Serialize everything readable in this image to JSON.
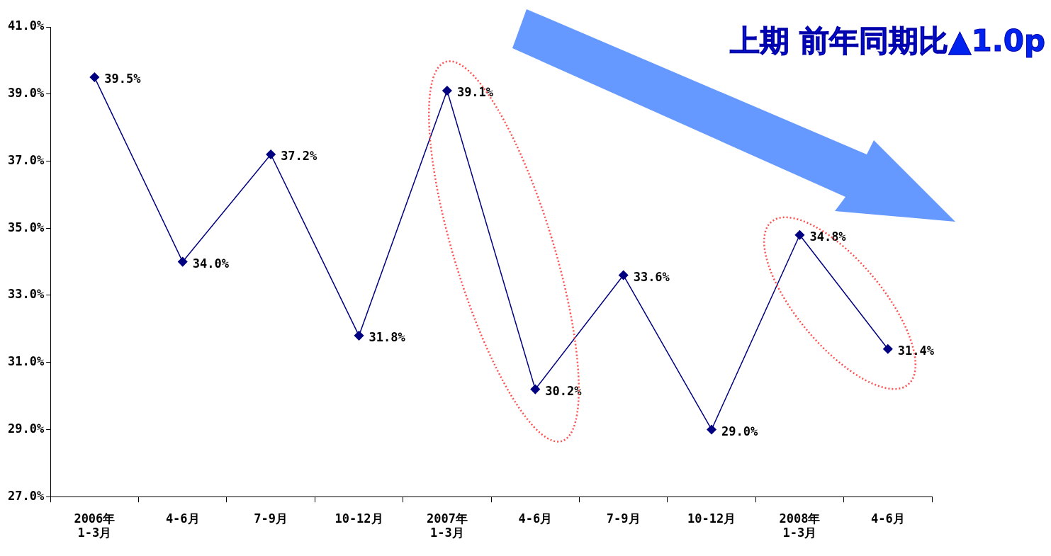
{
  "chart_data": {
    "type": "line",
    "title": "上期 前年同期比▲1.0p",
    "categories": [
      "2006年\n1-3月",
      "4-6月",
      "7-9月",
      "10-12月",
      "2007年\n1-3月",
      "4-6月",
      "7-9月",
      "10-12月",
      "2008年\n1-3月",
      "4-6月"
    ],
    "series": [
      {
        "color": "#000080",
        "values": [
          39.5,
          34.0,
          37.2,
          31.8,
          39.1,
          30.2,
          33.6,
          29.0,
          34.8,
          31.4
        ],
        "value_labels": [
          "39.5%",
          "34.0%",
          "37.2%",
          "31.8%",
          "39.1%",
          "30.2%",
          "33.6%",
          "29.0%",
          "34.8%",
          "31.4%"
        ]
      }
    ],
    "ylim": [
      27,
      41
    ],
    "yticks": [
      {
        "value": 27,
        "label": "27.0%"
      },
      {
        "value": 29,
        "label": "29.0%"
      },
      {
        "value": 31,
        "label": "31.0%"
      },
      {
        "value": 33,
        "label": "33.0%"
      },
      {
        "value": 35,
        "label": "35.0%"
      },
      {
        "value": 37,
        "label": "37.0%"
      },
      {
        "value": 39,
        "label": "39.0%"
      },
      {
        "value": 41,
        "label": "41.0%"
      }
    ],
    "grid": false,
    "legend": false,
    "marker": "diamond",
    "line_style": "solid"
  }
}
